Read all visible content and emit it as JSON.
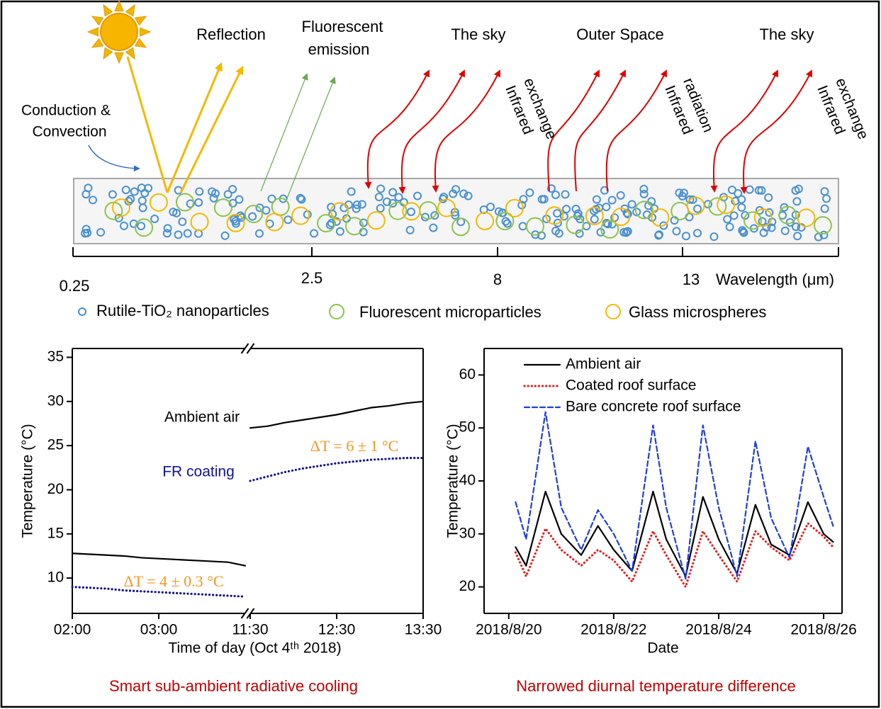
{
  "diagram": {
    "labels": {
      "reflection": "Reflection",
      "fluorescent_emission": [
        "Fluorescent",
        "emission"
      ],
      "sky_left": "The sky",
      "outer_space": "Outer Space",
      "sky_right": "The sky",
      "conduction": [
        "Conduction &",
        "Convection"
      ],
      "ir_exchange_left": [
        "Infrared",
        "exchange"
      ],
      "ir_radiation": [
        "Infrared",
        "radiation"
      ],
      "ir_exchange_right": [
        "Infrared",
        "exchange"
      ]
    },
    "wavelength_axis": {
      "ticks": [
        "0.25",
        "2.5",
        "8",
        "13"
      ],
      "title": "Wavelength (μm)"
    },
    "legend": [
      "Rutile-TiO₂ nanoparticles",
      "Fluorescent microparticles",
      "Glass microspheres"
    ]
  },
  "chart_data": [
    {
      "type": "line",
      "x_title": "Time of day (Oct 4ᵗʰ 2018)",
      "y_title": "Temperature (°C)",
      "caption": "Smart sub-ambient radiative cooling",
      "xlim": [
        [
          2,
          4
        ],
        [
          11.5,
          13.5
        ]
      ],
      "xticks": [
        {
          "value": 2,
          "label": "02:00"
        },
        {
          "value": 3,
          "label": "03:00"
        },
        {
          "value": 11.5,
          "label": "11:30"
        },
        {
          "value": 12.5,
          "label": "12:30"
        },
        {
          "value": 13.5,
          "label": "13:30"
        }
      ],
      "ylim": [
        6,
        36
      ],
      "yticks": [
        10,
        15,
        20,
        25,
        30,
        35
      ],
      "x": [
        2.0,
        2.2,
        2.4,
        2.6,
        2.8,
        3.0,
        3.2,
        3.4,
        3.6,
        3.8,
        4.0,
        11.5,
        11.7,
        11.9,
        12.1,
        12.3,
        12.5,
        12.7,
        12.9,
        13.1,
        13.3,
        13.5
      ],
      "series": [
        {
          "name": "Ambient air",
          "color": "#000000",
          "style": "solid",
          "values": [
            12.8,
            12.7,
            12.6,
            12.5,
            12.3,
            12.2,
            12.1,
            12.0,
            11.9,
            11.8,
            11.4,
            27.0,
            27.2,
            27.6,
            27.9,
            28.2,
            28.5,
            28.9,
            29.3,
            29.5,
            29.8,
            30.0
          ]
        },
        {
          "name": "FR coating",
          "color": "#12129a",
          "style": "dotted",
          "values": [
            9.0,
            8.9,
            8.8,
            8.6,
            8.5,
            8.4,
            8.3,
            8.2,
            8.1,
            8.0,
            7.9,
            21.0,
            21.5,
            22.0,
            22.4,
            22.7,
            23.0,
            23.2,
            23.4,
            23.5,
            23.6,
            23.6
          ]
        }
      ],
      "annotations": [
        "Ambient air",
        "FR coating",
        "ΔT = 6 ± 1 °C",
        "ΔT = 4 ± 0.3 °C"
      ],
      "legend": false
    },
    {
      "type": "line",
      "x_title": "Date",
      "y_title": "Temperature (°C)",
      "caption": "Narrowed diurnal  temperature difference",
      "xlim": [
        -0.47,
        6.35
      ],
      "xticks": [
        {
          "value": 0,
          "label": "2018/8/20"
        },
        {
          "value": 2,
          "label": "2018/8/22"
        },
        {
          "value": 4,
          "label": "2018/8/24"
        },
        {
          "value": 6,
          "label": "2018/8/26"
        }
      ],
      "ylim": [
        15,
        65
      ],
      "yticks": [
        20,
        30,
        40,
        50,
        60
      ],
      "x": [
        0.13,
        0.33,
        0.7,
        1.0,
        1.38,
        1.7,
        2.0,
        2.35,
        2.75,
        3.0,
        3.37,
        3.7,
        4.0,
        4.35,
        4.7,
        5.0,
        5.35,
        5.7,
        6.0,
        6.18
      ],
      "series": [
        {
          "name": "Ambient air",
          "color": "#000000",
          "style": "solid",
          "values": [
            27.5,
            24,
            38,
            30,
            26,
            31.5,
            27,
            23,
            38,
            29,
            22,
            37,
            29,
            22.5,
            35.5,
            28,
            26,
            36,
            30,
            28.5
          ]
        },
        {
          "name": "Coated roof surface",
          "color": "#e8201f",
          "style": "dotted",
          "values": [
            26.5,
            22,
            31,
            27,
            24,
            27,
            25,
            21,
            30.5,
            26,
            20,
            30.5,
            26,
            21,
            30.5,
            27.5,
            25,
            32,
            29.5,
            27.5
          ]
        },
        {
          "name": "Bare concrete roof surface",
          "color": "#1f3ee0",
          "style": "dashed",
          "values": [
            36,
            29,
            53,
            35,
            27,
            34.5,
            30,
            23,
            50.5,
            35,
            21.5,
            50.5,
            35,
            22,
            47.5,
            33,
            25.5,
            46.5,
            37,
            31.5
          ]
        }
      ],
      "legend": "upper left"
    }
  ]
}
